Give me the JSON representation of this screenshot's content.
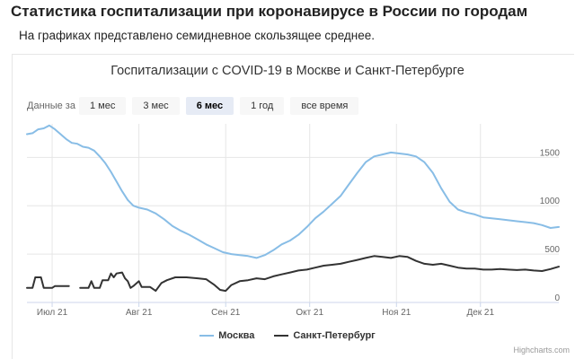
{
  "page": {
    "title": "Статистика госпитализации при коронавирусе в России по городам",
    "subtitle": "На графиках представлено семидневное скользящее среднее."
  },
  "range_selector": {
    "label": "Данные за",
    "buttons": [
      {
        "label": "1 мес",
        "active": false
      },
      {
        "label": "3 мес",
        "active": false
      },
      {
        "label": "6 мес",
        "active": true
      },
      {
        "label": "1 год",
        "active": false
      },
      {
        "label": "все время",
        "active": false
      }
    ]
  },
  "credits": "Highcharts.com",
  "chart_data": {
    "type": "line",
    "title": "Госпитализации с COVID-19 в Москве и Санкт-Петербурге",
    "x_range": [
      "2021-06-22",
      "2021-12-29"
    ],
    "x_ticks": [
      {
        "date": "2021-07-01",
        "label": "Июл 21"
      },
      {
        "date": "2021-08-01",
        "label": "Авг 21"
      },
      {
        "date": "2021-09-01",
        "label": "Сен 21"
      },
      {
        "date": "2021-10-01",
        "label": "Окт 21"
      },
      {
        "date": "2021-11-01",
        "label": "Ноя 21"
      },
      {
        "date": "2021-12-01",
        "label": "Дек 21"
      }
    ],
    "y_axis": {
      "position": "right",
      "min": 0,
      "max": 1800,
      "ticks": [
        0,
        500,
        1000,
        1500
      ]
    },
    "grid": true,
    "legend": "bottom-center",
    "series": [
      {
        "name": "Москва",
        "color": "#88bde6",
        "points": [
          [
            "2021-06-22",
            1740
          ],
          [
            "2021-06-24",
            1750
          ],
          [
            "2021-06-26",
            1790
          ],
          [
            "2021-06-28",
            1800
          ],
          [
            "2021-06-30",
            1830
          ],
          [
            "2021-07-02",
            1790
          ],
          [
            "2021-07-04",
            1740
          ],
          [
            "2021-07-06",
            1690
          ],
          [
            "2021-07-08",
            1650
          ],
          [
            "2021-07-10",
            1640
          ],
          [
            "2021-07-12",
            1610
          ],
          [
            "2021-07-14",
            1600
          ],
          [
            "2021-07-16",
            1570
          ],
          [
            "2021-07-18",
            1510
          ],
          [
            "2021-07-20",
            1440
          ],
          [
            "2021-07-22",
            1350
          ],
          [
            "2021-07-24",
            1250
          ],
          [
            "2021-07-26",
            1150
          ],
          [
            "2021-07-28",
            1060
          ],
          [
            "2021-07-30",
            1000
          ],
          [
            "2021-08-01",
            980
          ],
          [
            "2021-08-04",
            960
          ],
          [
            "2021-08-07",
            920
          ],
          [
            "2021-08-10",
            860
          ],
          [
            "2021-08-13",
            790
          ],
          [
            "2021-08-16",
            740
          ],
          [
            "2021-08-19",
            700
          ],
          [
            "2021-08-22",
            650
          ],
          [
            "2021-08-25",
            600
          ],
          [
            "2021-08-28",
            560
          ],
          [
            "2021-08-31",
            520
          ],
          [
            "2021-09-03",
            500
          ],
          [
            "2021-09-06",
            490
          ],
          [
            "2021-09-09",
            480
          ],
          [
            "2021-09-12",
            460
          ],
          [
            "2021-09-15",
            490
          ],
          [
            "2021-09-18",
            540
          ],
          [
            "2021-09-21",
            600
          ],
          [
            "2021-09-24",
            640
          ],
          [
            "2021-09-27",
            700
          ],
          [
            "2021-09-30",
            780
          ],
          [
            "2021-10-03",
            870
          ],
          [
            "2021-10-06",
            940
          ],
          [
            "2021-10-09",
            1020
          ],
          [
            "2021-10-12",
            1100
          ],
          [
            "2021-10-15",
            1220
          ],
          [
            "2021-10-18",
            1340
          ],
          [
            "2021-10-21",
            1450
          ],
          [
            "2021-10-24",
            1510
          ],
          [
            "2021-10-27",
            1530
          ],
          [
            "2021-10-30",
            1550
          ],
          [
            "2021-11-02",
            1540
          ],
          [
            "2021-11-05",
            1530
          ],
          [
            "2021-11-08",
            1510
          ],
          [
            "2021-11-11",
            1450
          ],
          [
            "2021-11-14",
            1340
          ],
          [
            "2021-11-17",
            1180
          ],
          [
            "2021-11-20",
            1040
          ],
          [
            "2021-11-23",
            960
          ],
          [
            "2021-11-26",
            930
          ],
          [
            "2021-11-29",
            910
          ],
          [
            "2021-12-02",
            880
          ],
          [
            "2021-12-05",
            870
          ],
          [
            "2021-12-08",
            860
          ],
          [
            "2021-12-11",
            850
          ],
          [
            "2021-12-14",
            840
          ],
          [
            "2021-12-17",
            830
          ],
          [
            "2021-12-20",
            820
          ],
          [
            "2021-12-23",
            800
          ],
          [
            "2021-12-26",
            770
          ],
          [
            "2021-12-29",
            780
          ]
        ]
      },
      {
        "name": "Санкт-Петербург",
        "color": "#333333",
        "segments": [
          [
            [
              "2021-06-22",
              150
            ],
            [
              "2021-06-24",
              150
            ],
            [
              "2021-06-25",
              260
            ],
            [
              "2021-06-27",
              260
            ],
            [
              "2021-06-28",
              150
            ],
            [
              "2021-07-01",
              150
            ],
            [
              "2021-07-02",
              170
            ],
            [
              "2021-07-07",
              170
            ]
          ],
          [
            [
              "2021-07-11",
              150
            ],
            [
              "2021-07-14",
              150
            ],
            [
              "2021-07-15",
              220
            ],
            [
              "2021-07-16",
              150
            ],
            [
              "2021-07-18",
              150
            ],
            [
              "2021-07-19",
              230
            ],
            [
              "2021-07-21",
              230
            ],
            [
              "2021-07-22",
              300
            ],
            [
              "2021-07-23",
              260
            ],
            [
              "2021-07-24",
              300
            ],
            [
              "2021-07-26",
              310
            ],
            [
              "2021-07-27",
              250
            ],
            [
              "2021-07-28",
              220
            ],
            [
              "2021-07-29",
              150
            ],
            [
              "2021-07-30",
              170
            ],
            [
              "2021-08-01",
              220
            ],
            [
              "2021-08-02",
              160
            ],
            [
              "2021-08-05",
              160
            ],
            [
              "2021-08-07",
              120
            ],
            [
              "2021-08-09",
              200
            ],
            [
              "2021-08-11",
              230
            ],
            [
              "2021-08-14",
              260
            ],
            [
              "2021-08-18",
              260
            ],
            [
              "2021-08-22",
              250
            ],
            [
              "2021-08-25",
              240
            ],
            [
              "2021-08-28",
              180
            ],
            [
              "2021-08-30",
              130
            ],
            [
              "2021-09-01",
              120
            ],
            [
              "2021-09-03",
              180
            ],
            [
              "2021-09-06",
              220
            ],
            [
              "2021-09-09",
              230
            ],
            [
              "2021-09-12",
              250
            ],
            [
              "2021-09-15",
              240
            ],
            [
              "2021-09-18",
              270
            ],
            [
              "2021-09-21",
              290
            ],
            [
              "2021-09-24",
              310
            ],
            [
              "2021-09-27",
              330
            ],
            [
              "2021-09-30",
              340
            ],
            [
              "2021-10-03",
              360
            ],
            [
              "2021-10-06",
              380
            ],
            [
              "2021-10-09",
              390
            ],
            [
              "2021-10-12",
              400
            ],
            [
              "2021-10-15",
              420
            ],
            [
              "2021-10-18",
              440
            ],
            [
              "2021-10-21",
              460
            ],
            [
              "2021-10-24",
              480
            ],
            [
              "2021-10-27",
              470
            ],
            [
              "2021-10-30",
              460
            ],
            [
              "2021-11-02",
              480
            ],
            [
              "2021-11-05",
              470
            ],
            [
              "2021-11-08",
              430
            ],
            [
              "2021-11-11",
              400
            ],
            [
              "2021-11-14",
              390
            ],
            [
              "2021-11-17",
              400
            ],
            [
              "2021-11-20",
              380
            ],
            [
              "2021-11-23",
              360
            ],
            [
              "2021-11-26",
              350
            ],
            [
              "2021-11-29",
              350
            ],
            [
              "2021-12-02",
              340
            ],
            [
              "2021-12-05",
              340
            ],
            [
              "2021-12-08",
              345
            ],
            [
              "2021-12-11",
              340
            ],
            [
              "2021-12-14",
              335
            ],
            [
              "2021-12-17",
              340
            ],
            [
              "2021-12-20",
              330
            ],
            [
              "2021-12-23",
              325
            ],
            [
              "2021-12-26",
              345
            ],
            [
              "2021-12-29",
              370
            ]
          ]
        ]
      }
    ]
  }
}
